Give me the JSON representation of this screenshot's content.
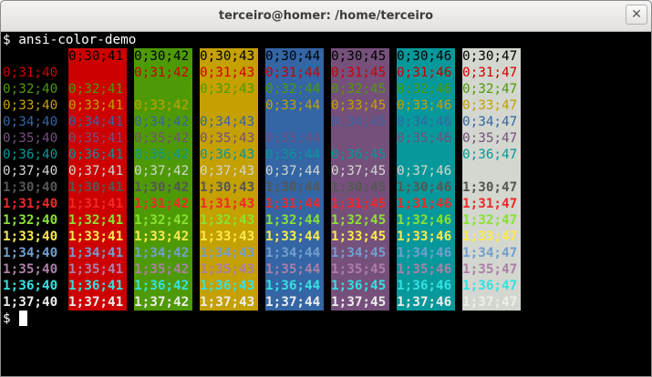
{
  "window": {
    "title": "terceiro@homer: /home/terceiro"
  },
  "terminal": {
    "command_line": "$ ansi-color-demo",
    "prompt_line": "$ "
  },
  "palette": {
    "normal": [
      "#000000",
      "#cc0000",
      "#4e9a06",
      "#c4a000",
      "#3465a4",
      "#75507b",
      "#06989a",
      "#d3d7cf"
    ],
    "bright": [
      "#555753",
      "#ef2929",
      "#8ae234",
      "#fce94f",
      "#729fcf",
      "#ad7fa8",
      "#34e2e2",
      "#eeeeec"
    ]
  },
  "demo": {
    "columns": [
      {
        "bg": null,
        "header": ""
      },
      {
        "bg": 1,
        "header": "0;30;41"
      },
      {
        "bg": 2,
        "header": "0;30;42"
      },
      {
        "bg": 3,
        "header": "0;30;43"
      },
      {
        "bg": 4,
        "header": "0;30;44"
      },
      {
        "bg": 5,
        "header": "0;30;45"
      },
      {
        "bg": 6,
        "header": "0;30;46"
      },
      {
        "bg": 7,
        "header": "0;30;47"
      }
    ],
    "rows": [
      {
        "bold": 0,
        "fg": 1,
        "cells": [
          "0;31;40",
          "0;31;41",
          "0;31;42",
          "0;31;43",
          "0;31;44",
          "0;31;45",
          "0;31;46",
          "0;31;47"
        ]
      },
      {
        "bold": 0,
        "fg": 2,
        "cells": [
          "0;32;40",
          "0;32;41",
          "0;32;42",
          "0;32;43",
          "0;32;44",
          "0;32;45",
          "0;32;46",
          "0;32;47"
        ]
      },
      {
        "bold": 0,
        "fg": 3,
        "cells": [
          "0;33;40",
          "0;33;41",
          "0;33;42",
          "0;33;43",
          "0;33;44",
          "0;33;45",
          "0;33;46",
          "0;33;47"
        ]
      },
      {
        "bold": 0,
        "fg": 4,
        "cells": [
          "0;34;40",
          "0;34;41",
          "0;34;42",
          "0;34;43",
          "0;34;44",
          "0;34;45",
          "0;34;46",
          "0;34;47"
        ]
      },
      {
        "bold": 0,
        "fg": 5,
        "cells": [
          "0;35;40",
          "0;35;41",
          "0;35;42",
          "0;35;43",
          "0;35;44",
          "0;35;45",
          "0;35;46",
          "0;35;47"
        ]
      },
      {
        "bold": 0,
        "fg": 6,
        "cells": [
          "0;36;40",
          "0;36;41",
          "0;36;42",
          "0;36;43",
          "0;36;44",
          "0;36;45",
          "0;36;46",
          "0;36;47"
        ]
      },
      {
        "bold": 0,
        "fg": 7,
        "cells": [
          "0;37;40",
          "0;37;41",
          "0;37;42",
          "0;37;43",
          "0;37;44",
          "0;37;45",
          "0;37;46",
          ""
        ]
      },
      {
        "bold": 1,
        "fg": 0,
        "cells": [
          "1;30;40",
          "1;30;41",
          "1;30;42",
          "1;30;43",
          "1;30;44",
          "1;30;45",
          "1;30;46",
          "1;30;47"
        ]
      },
      {
        "bold": 1,
        "fg": 1,
        "cells": [
          "1;31;40",
          "1;31;41",
          "1;31;42",
          "1;31;43",
          "1;31;44",
          "1;31;45",
          "1;31;46",
          "1;31;47"
        ]
      },
      {
        "bold": 1,
        "fg": 2,
        "cells": [
          "1;32;40",
          "1;32;41",
          "1;32;42",
          "1;32;43",
          "1;32;44",
          "1;32;45",
          "1;32;46",
          "1;32;47"
        ]
      },
      {
        "bold": 1,
        "fg": 3,
        "cells": [
          "1;33;40",
          "1;33;41",
          "1;33;42",
          "1;33;43",
          "1;33;44",
          "1;33;45",
          "1;33;46",
          "1;33;47"
        ]
      },
      {
        "bold": 1,
        "fg": 4,
        "cells": [
          "1;34;40",
          "1;34;41",
          "1;34;42",
          "1;34;43",
          "1;34;44",
          "1;34;45",
          "1;34;46",
          "1;34;47"
        ]
      },
      {
        "bold": 1,
        "fg": 5,
        "cells": [
          "1;35;40",
          "1;35;41",
          "1;35;42",
          "1;35;43",
          "1;35;44",
          "1;35;45",
          "1;35;46",
          "1;35;47"
        ]
      },
      {
        "bold": 1,
        "fg": 6,
        "cells": [
          "1;36;40",
          "1;36;41",
          "1;36;42",
          "1;36;43",
          "1;36;44",
          "1;36;45",
          "1;36;46",
          "1;36;47"
        ]
      },
      {
        "bold": 1,
        "fg": 7,
        "cells": [
          "1;37;40",
          "1;37;41",
          "1;37;42",
          "1;37;43",
          "1;37;44",
          "1;37;45",
          "1;37;46",
          "1;37;47"
        ]
      }
    ]
  }
}
